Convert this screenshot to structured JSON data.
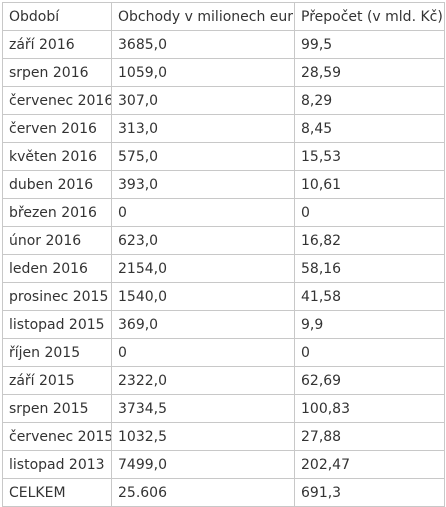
{
  "table": {
    "headers": [
      "Období",
      "Obchody v milionech eur",
      "Přepočet (v mld. Kč)"
    ],
    "rows": [
      [
        "září 2016",
        "3685,0",
        "99,5"
      ],
      [
        "srpen 2016",
        "1059,0",
        "28,59"
      ],
      [
        "červenec 2016",
        "307,0",
        "8,29"
      ],
      [
        "červen 2016",
        "313,0",
        "8,45"
      ],
      [
        "květen 2016",
        "575,0",
        "15,53"
      ],
      [
        "duben 2016",
        "393,0",
        "10,61"
      ],
      [
        "březen 2016",
        "0",
        "0"
      ],
      [
        "únor 2016",
        "623,0",
        "16,82"
      ],
      [
        "leden 2016",
        "2154,0",
        "58,16"
      ],
      [
        "prosinec 2015",
        "1540,0",
        "41,58"
      ],
      [
        "listopad 2015",
        "369,0",
        "9,9"
      ],
      [
        "říjen 2015",
        "0",
        "0"
      ],
      [
        "září 2015",
        "2322,0",
        "62,69"
      ],
      [
        "srpen 2015",
        "3734,5",
        "100,83"
      ],
      [
        "červenec 2015",
        "1032,5",
        "27,88"
      ],
      [
        "listopad 2013",
        "7499,0",
        "202,47"
      ],
      [
        "CELKEM",
        "25.606",
        "691,3"
      ]
    ]
  }
}
